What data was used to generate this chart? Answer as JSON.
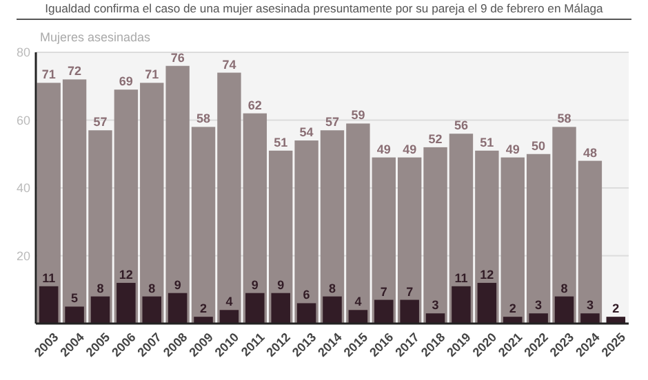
{
  "chart_data": {
    "type": "bar",
    "title": "Igualdad confirma el caso de una mujer asesinada presuntamente por su pareja el 9 de febrero en Málaga",
    "ylabel": "Mujeres asesinadas",
    "categories": [
      "2003",
      "2004",
      "2005",
      "2006",
      "2007",
      "2008",
      "2009",
      "2010",
      "2011",
      "2012",
      "2013",
      "2014",
      "2015",
      "2016",
      "2017",
      "2018",
      "2019",
      "2020",
      "2021",
      "2022",
      "2023",
      "2024",
      "2025"
    ],
    "series": [
      {
        "color": "#968a8a",
        "values": [
          71,
          72,
          57,
          69,
          71,
          76,
          58,
          74,
          62,
          51,
          54,
          57,
          59,
          49,
          49,
          52,
          56,
          51,
          49,
          50,
          58,
          48,
          null
        ]
      },
      {
        "color": "#321c26",
        "values": [
          11,
          5,
          8,
          12,
          8,
          9,
          2,
          4,
          9,
          9,
          6,
          8,
          4,
          7,
          7,
          3,
          11,
          12,
          2,
          3,
          8,
          3,
          2
        ]
      }
    ],
    "ylim": [
      0,
      80
    ],
    "yticks": [
      20,
      40,
      60,
      80
    ],
    "grid": "y",
    "data_labels": true
  }
}
